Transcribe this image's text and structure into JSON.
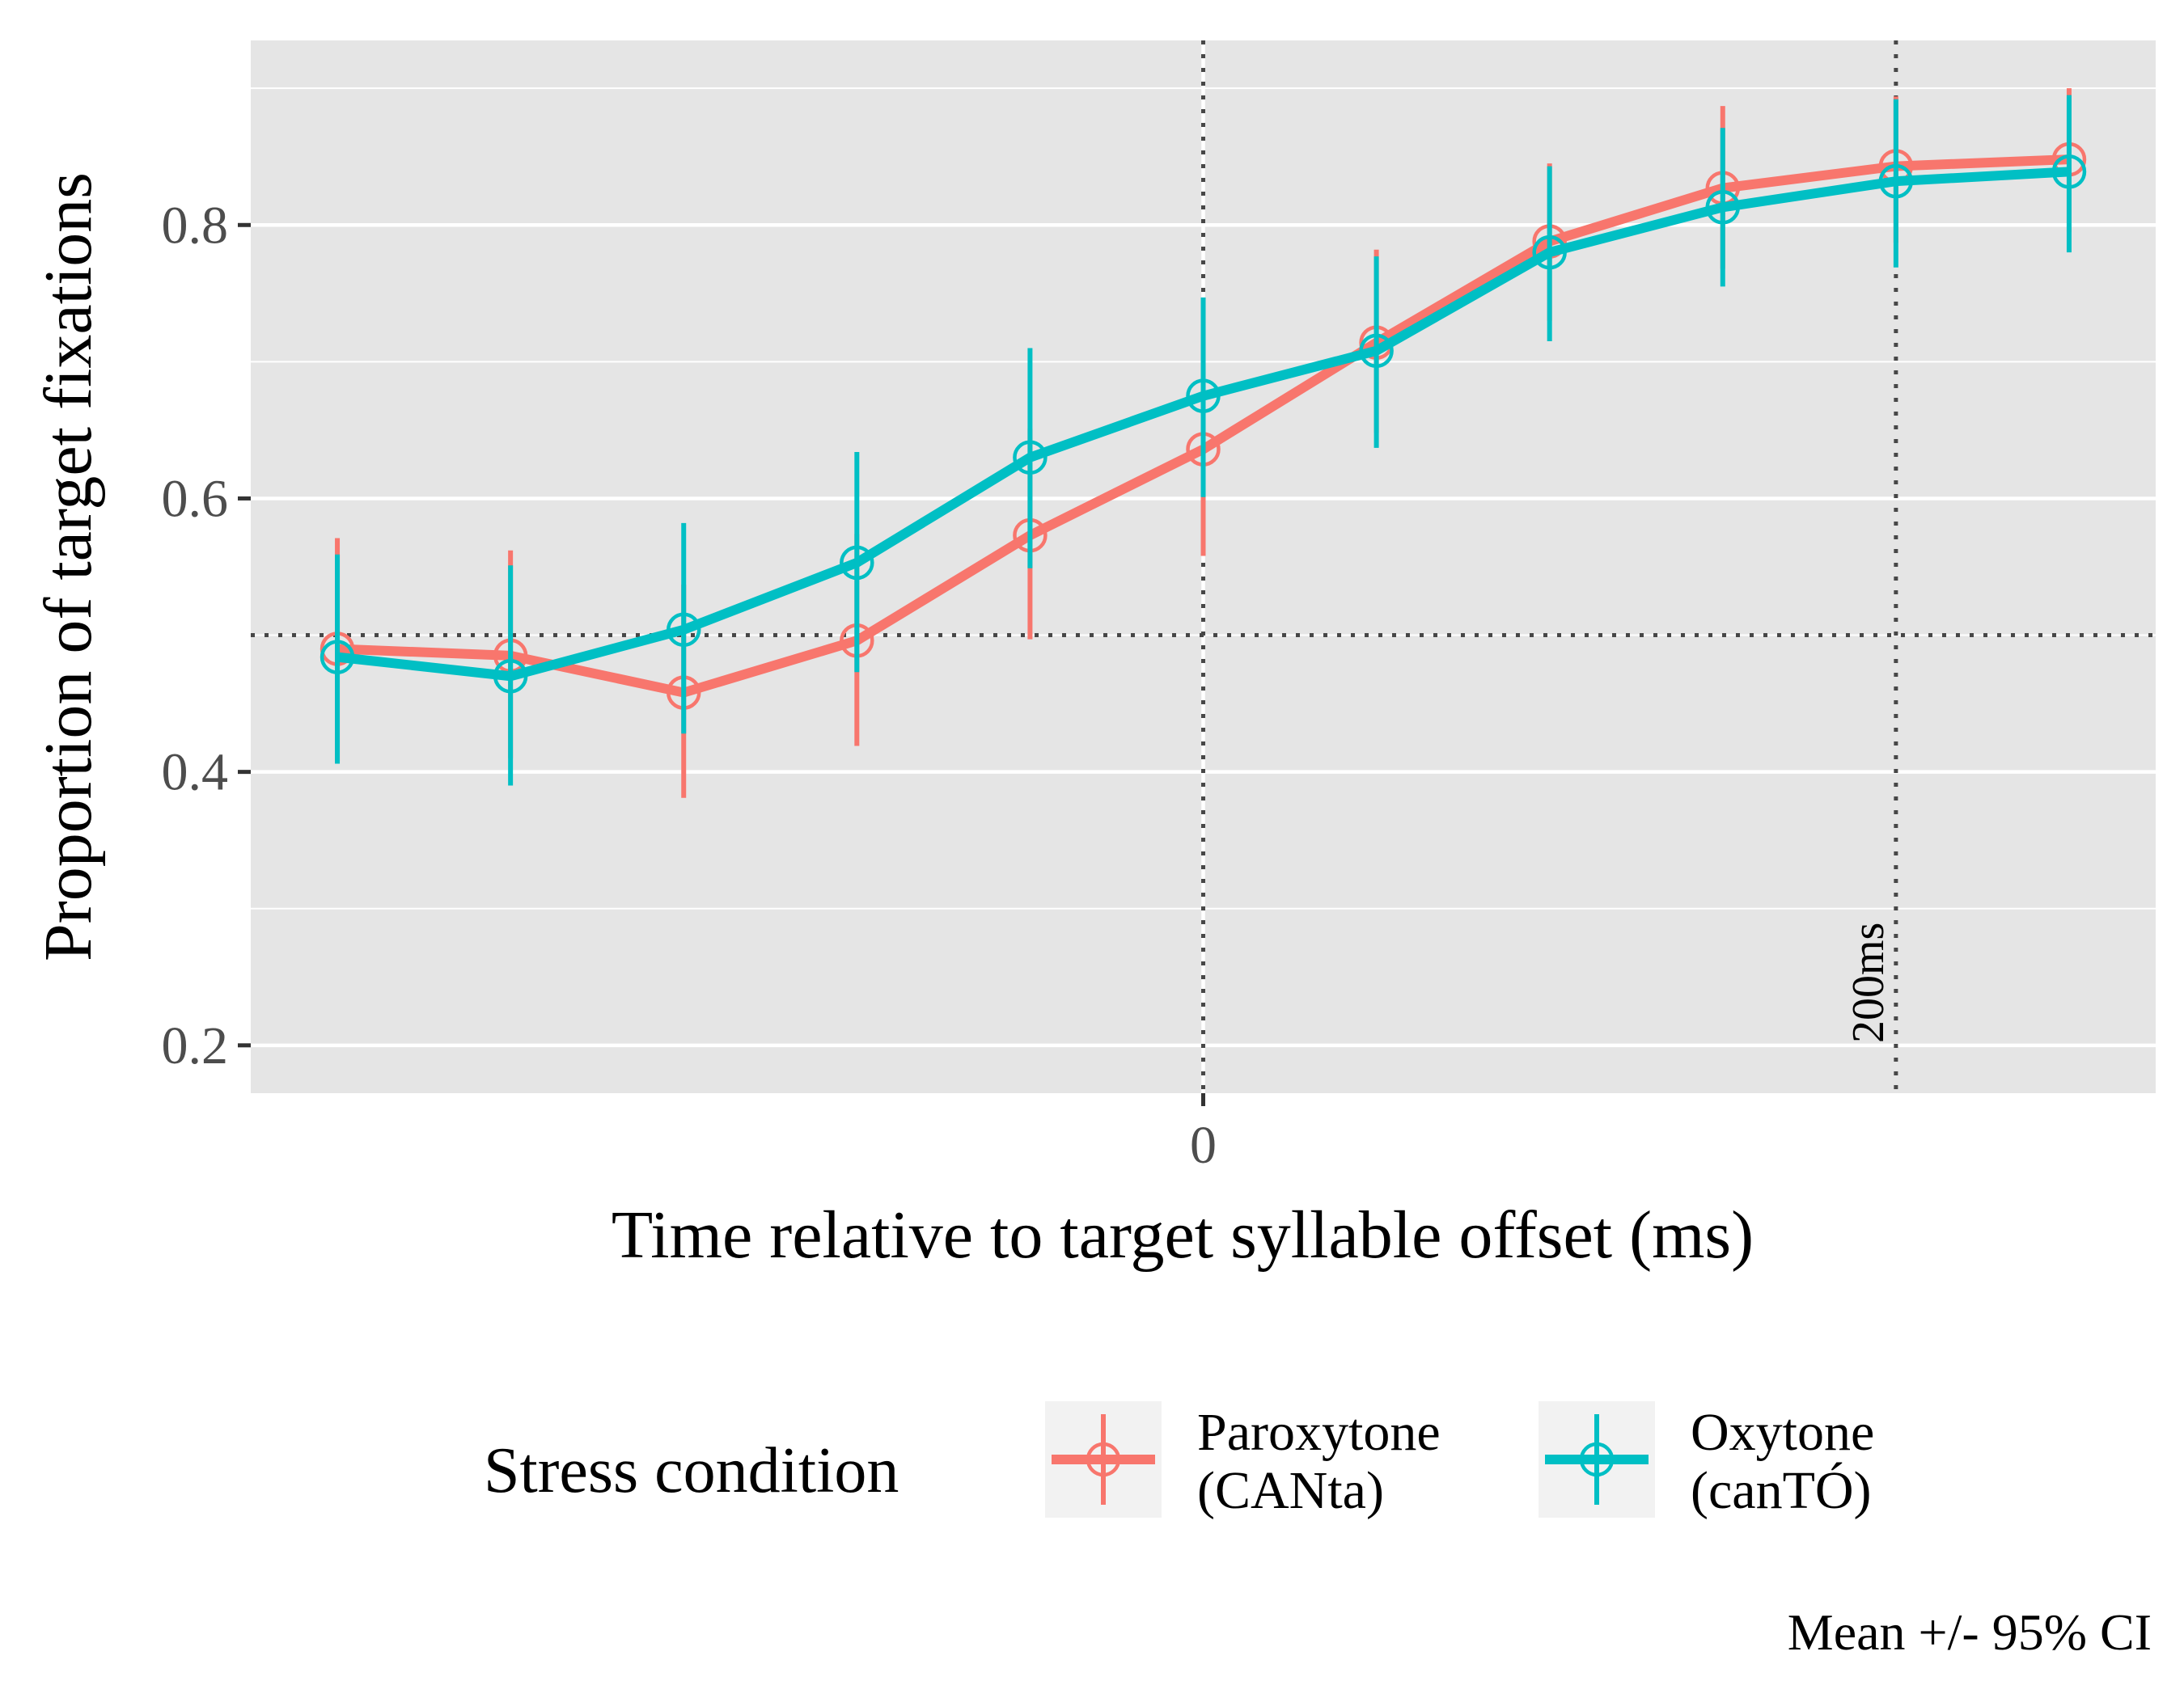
{
  "chart_data": {
    "type": "line",
    "xlabel": "Time relative to target syllable offset (ms)",
    "ylabel": "Proportion of target fixations",
    "caption": "Mean +/- 95% CI",
    "x": [
      -250,
      -200,
      -150,
      -100,
      -50,
      0,
      50,
      100,
      150,
      200,
      250
    ],
    "xlim": [
      -275,
      275
    ],
    "ylim": [
      0.165,
      0.935
    ],
    "x_ticks": [
      0
    ],
    "x_tick_labels": [
      "0"
    ],
    "y_ticks": [
      0.2,
      0.4,
      0.6,
      0.8
    ],
    "y_tick_labels": [
      "0.2",
      "0.4",
      "0.6",
      "0.8"
    ],
    "y_minor_ticks": [
      0.3,
      0.5,
      0.7,
      0.9
    ],
    "reference_lines": {
      "horizontal": [
        0.5
      ],
      "vertical": [
        0,
        200
      ],
      "vline_annotation": {
        "x": 200,
        "text": "200ms"
      }
    },
    "legend": {
      "title": "Stress condition",
      "position": "bottom"
    },
    "series": [
      {
        "name": "Paroxytone\n(CANta)",
        "color": "#F8766D",
        "values": [
          0.49,
          0.485,
          0.458,
          0.496,
          0.573,
          0.636,
          0.714,
          0.788,
          0.827,
          0.843,
          0.848
        ],
        "ci_low": [
          0.408,
          0.41,
          0.381,
          0.419,
          0.497,
          0.558,
          0.648,
          0.73,
          0.768,
          0.787,
          0.795
        ],
        "ci_high": [
          0.571,
          0.562,
          0.537,
          0.574,
          0.651,
          0.718,
          0.782,
          0.845,
          0.887,
          0.894,
          0.9
        ]
      },
      {
        "name": "Oxytone\n(canTÓ)",
        "color": "#00BFC4",
        "values": [
          0.484,
          0.47,
          0.504,
          0.553,
          0.63,
          0.675,
          0.708,
          0.78,
          0.813,
          0.832,
          0.839
        ],
        "ci_low": [
          0.406,
          0.39,
          0.428,
          0.473,
          0.549,
          0.601,
          0.637,
          0.715,
          0.755,
          0.769,
          0.78
        ],
        "ci_high": [
          0.559,
          0.551,
          0.582,
          0.634,
          0.71,
          0.747,
          0.777,
          0.843,
          0.871,
          0.892,
          0.895
        ]
      }
    ]
  }
}
